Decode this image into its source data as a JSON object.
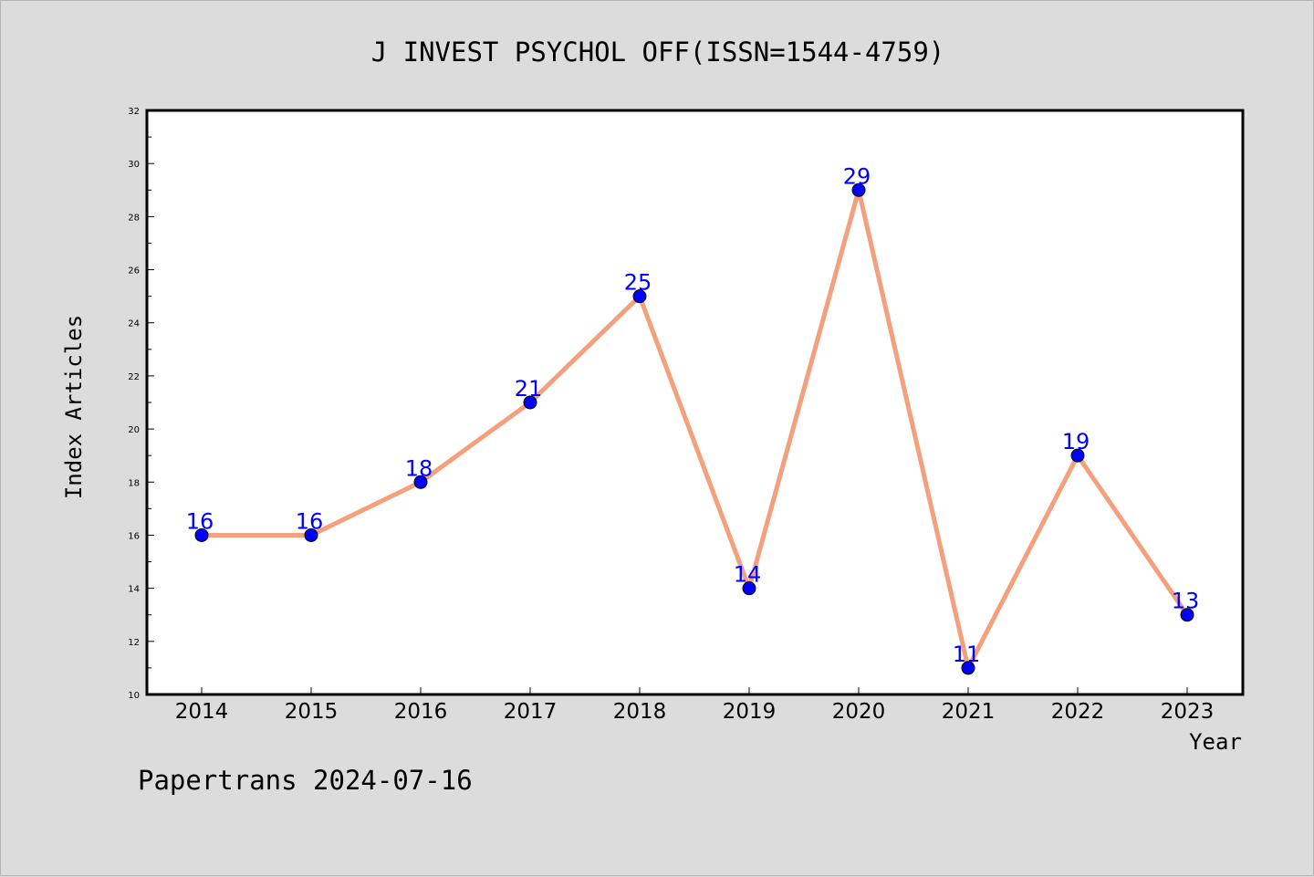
{
  "chart_data": {
    "type": "line",
    "title": "J INVEST PSYCHOL OFF(ISSN=1544-4759)",
    "xlabel": "Year",
    "ylabel": "Index Articles",
    "categories": [
      "2014",
      "2015",
      "2016",
      "2017",
      "2018",
      "2019",
      "2020",
      "2021",
      "2022",
      "2023"
    ],
    "values": [
      16,
      16,
      18,
      21,
      25,
      14,
      29,
      11,
      19,
      13
    ],
    "data_labels": [
      "16",
      "16",
      "18",
      "21",
      "25",
      "14",
      "29",
      "11",
      "19",
      "13"
    ],
    "ylim": [
      10,
      32
    ],
    "y_ticks": [
      "10",
      "12",
      "14",
      "16",
      "18",
      "20",
      "22",
      "24",
      "26",
      "28",
      "30",
      "32"
    ],
    "grid": false,
    "line_color": "#f4a07c",
    "marker_color": "#0000ff",
    "label_color": "#0000ff"
  },
  "footer": {
    "text": "Papertrans 2024-07-16"
  }
}
